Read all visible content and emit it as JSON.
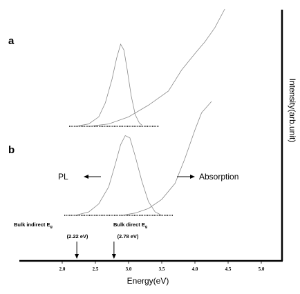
{
  "chart_data": {
    "type": "line",
    "title": "",
    "xlabel": "Energy(eV)",
    "ylabel": "Intensity(arb.unit)",
    "x_ticks": [
      2.0,
      2.5,
      3.0,
      3.5,
      4.0,
      4.5,
      5.0
    ],
    "x_tick_labels": [
      "2.0",
      "2.5",
      "3.0",
      "3.5",
      "4.0",
      "4.5",
      "5.0"
    ],
    "xlim": [
      1.5,
      5.3
    ],
    "grid": false,
    "panels": [
      {
        "label": "a",
        "series": [
          {
            "x": [
              2.2,
              2.4,
              2.55,
              2.65,
              2.75,
              2.82,
              2.88,
              2.93,
              2.98,
              3.04,
              3.1,
              3.16,
              3.2
            ],
            "y": [
              0.0,
              0.02,
              0.08,
              0.2,
              0.4,
              0.58,
              0.7,
              0.65,
              0.48,
              0.26,
              0.1,
              0.03,
              0.01
            ]
          },
          {
            "x": [
              2.4,
              2.7,
              3.0,
              3.3,
              3.6,
              3.8,
              4.0,
              4.15,
              4.3,
              4.45
            ],
            "y": [
              0.0,
              0.02,
              0.08,
              0.18,
              0.3,
              0.48,
              0.62,
              0.72,
              0.84,
              1.0
            ]
          }
        ]
      },
      {
        "label": "b",
        "series": [
          {
            "x": [
              2.2,
              2.4,
              2.55,
              2.7,
              2.8,
              2.88,
              2.95,
              3.02,
              3.1,
              3.2,
              3.3,
              3.4,
              3.5
            ],
            "y": [
              0.0,
              0.03,
              0.1,
              0.25,
              0.45,
              0.62,
              0.7,
              0.68,
              0.52,
              0.3,
              0.12,
              0.03,
              0.0
            ]
          },
          {
            "x": [
              2.9,
              3.1,
              3.3,
              3.5,
              3.7,
              3.85,
              4.0,
              4.1,
              4.25
            ],
            "y": [
              0.0,
              0.02,
              0.06,
              0.14,
              0.28,
              0.5,
              0.75,
              0.9,
              1.0
            ]
          }
        ]
      }
    ],
    "annotations": {
      "pl_label": "PL",
      "absorption_label": "Absorption",
      "indirect_label": "Bulk indirect E",
      "indirect_sub": "g",
      "indirect_value": "(2.22 eV)",
      "indirect_energy": 2.22,
      "direct_label": "Bulk direct E",
      "direct_sub": "g",
      "direct_value": "(2.78 eV)",
      "direct_energy": 2.78
    }
  }
}
